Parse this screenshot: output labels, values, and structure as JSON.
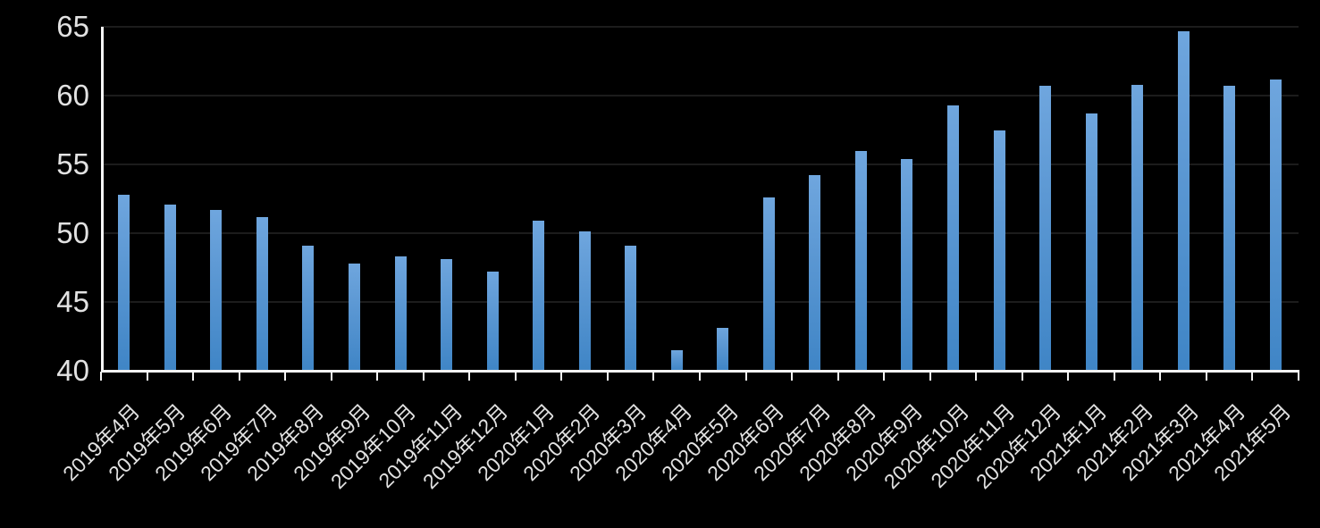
{
  "chart_data": {
    "type": "bar",
    "title": "",
    "xlabel": "",
    "ylabel": "",
    "categories": [
      "2019年4月",
      "2019年5月",
      "2019年6月",
      "2019年7月",
      "2019年8月",
      "2019年9月",
      "2019年10月",
      "2019年11月",
      "2019年12月",
      "2020年1月",
      "2020年2月",
      "2020年3月",
      "2020年4月",
      "2020年5月",
      "2020年6月",
      "2020年7月",
      "2020年8月",
      "2020年9月",
      "2020年10月",
      "2020年11月",
      "2020年12月",
      "2021年1月",
      "2021年2月",
      "2021年3月",
      "2021年4月",
      "2021年5月"
    ],
    "values": [
      52.8,
      52.1,
      51.7,
      51.2,
      49.1,
      47.8,
      48.3,
      48.1,
      47.2,
      50.9,
      50.1,
      49.1,
      41.5,
      43.1,
      52.6,
      54.2,
      56.0,
      55.4,
      59.3,
      57.5,
      60.7,
      58.7,
      60.8,
      64.7,
      60.7,
      61.2
    ],
    "ylim": [
      40,
      65
    ],
    "yticks": [
      40,
      45,
      50,
      55,
      60,
      65
    ],
    "grid": "horizontal",
    "legend_position": "none",
    "x_label_rotation_deg": 45
  },
  "colors": {
    "background": "#000000",
    "bar_gradient_top": "#6fa6de",
    "bar_gradient_bottom": "#3f85c6",
    "gridline": "#1c1c1c",
    "axis": "#f5f5f5",
    "label_text": "#e2e2e2"
  }
}
